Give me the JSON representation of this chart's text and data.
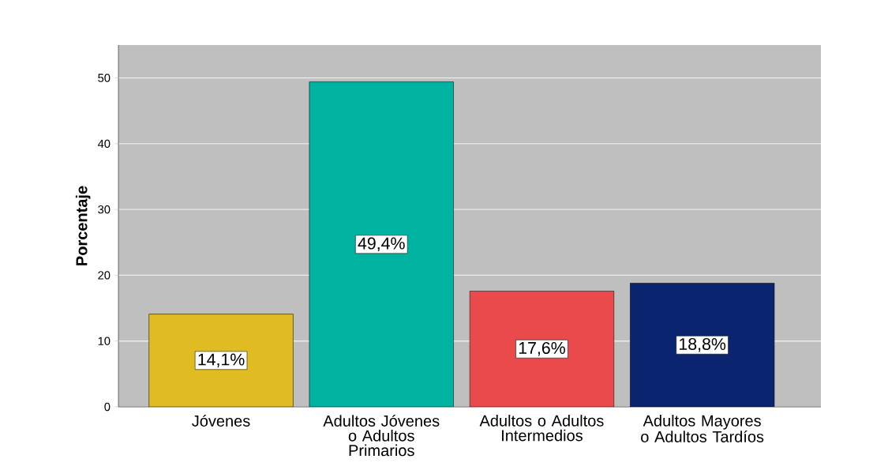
{
  "chart_data": {
    "type": "bar",
    "ylabel": "Porcentaje",
    "categories": [
      "Jóvenes",
      "Adultos Jóvenes o Adultos Primarios",
      "Adultos o Adultos Intermedios",
      "Adultos Mayores o Adultos Tardíos"
    ],
    "values": [
      14.1,
      49.4,
      17.6,
      18.8
    ],
    "value_labels": [
      "14,1%",
      "49,4%",
      "17,6%",
      "18,8%"
    ],
    "colors": [
      "#e0bb22",
      "#00b3a0",
      "#ea4a4c",
      "#0a2470"
    ],
    "ylim": [
      0,
      55
    ],
    "yticks": [
      0,
      10,
      20,
      30,
      40,
      50
    ],
    "grid": "y"
  }
}
